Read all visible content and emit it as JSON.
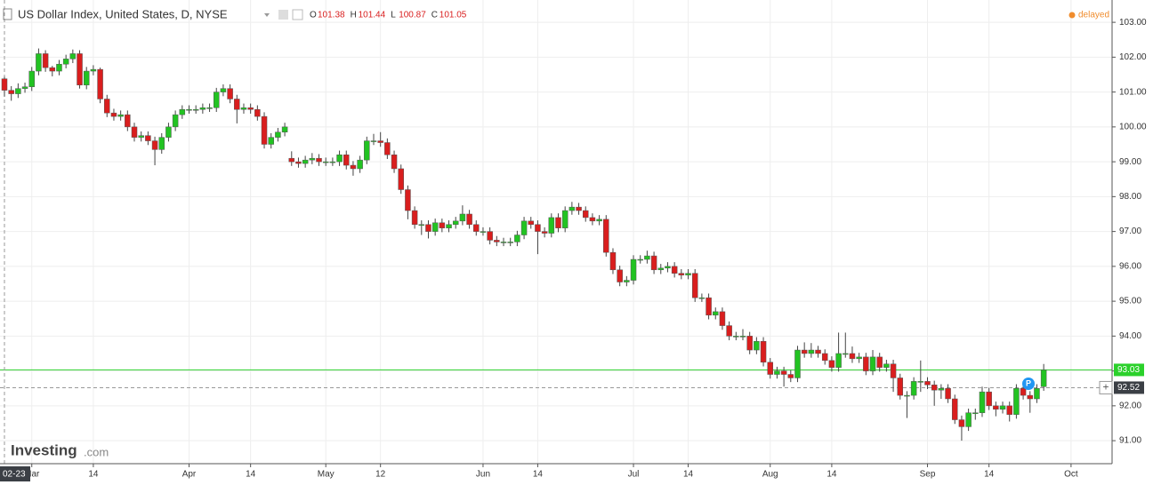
{
  "chart_data": {
    "type": "candlestick",
    "title": "US Dollar Index, United States, D, NYSE",
    "ohlc_letters": [
      "O",
      "H",
      "L",
      "C"
    ],
    "status": "delayed",
    "brand": "Investing",
    "brand_suffix": ".com",
    "up_color": "#22c322",
    "down_color": "#d91e1e",
    "last_price": 93.03,
    "last_price_color": "#2bd12b",
    "crosshair_price": 92.52,
    "crosshair_date": "02-23",
    "ylim": [
      90.34,
      103.64
    ],
    "yticks": [
      {
        "value": 91,
        "label": "91.00"
      },
      {
        "value": 92,
        "label": "92.00"
      },
      {
        "value": 93,
        "label": "93.00"
      },
      {
        "value": 94,
        "label": "94.00"
      },
      {
        "value": 95,
        "label": "95.00"
      },
      {
        "value": 96,
        "label": "96.00"
      },
      {
        "value": 97,
        "label": "97.00"
      },
      {
        "value": 98,
        "label": "98.00"
      },
      {
        "value": 99,
        "label": "99.00"
      },
      {
        "value": 100,
        "label": "100.00"
      },
      {
        "value": 101,
        "label": "101.00"
      },
      {
        "value": 102,
        "label": "102.00"
      },
      {
        "value": 103,
        "label": "103.00"
      }
    ],
    "xlim": [
      -0.65,
      162
    ],
    "xticks": [
      {
        "value": 4,
        "label": "Mar"
      },
      {
        "value": 13,
        "label": "14"
      },
      {
        "value": 27,
        "label": "Apr"
      },
      {
        "value": 36,
        "label": "14"
      },
      {
        "value": 47,
        "label": "May"
      },
      {
        "value": 55,
        "label": "12"
      },
      {
        "value": 70,
        "label": "Jun"
      },
      {
        "value": 78,
        "label": "14"
      },
      {
        "value": 92,
        "label": "Jul"
      },
      {
        "value": 100,
        "label": "14"
      },
      {
        "value": 112,
        "label": "Aug"
      },
      {
        "value": 121,
        "label": "14"
      },
      {
        "value": 135,
        "label": "Sep"
      },
      {
        "value": 144,
        "label": "14"
      },
      {
        "value": 156,
        "label": "Oct"
      }
    ],
    "grid": true,
    "ohlc": [
      [
        101.38,
        101.44,
        100.87,
        101.05
      ],
      [
        101.05,
        101.17,
        100.75,
        100.95
      ],
      [
        100.95,
        101.25,
        100.83,
        101.1
      ],
      [
        101.1,
        101.27,
        100.98,
        101.15
      ],
      [
        101.15,
        101.72,
        101.03,
        101.6
      ],
      [
        101.6,
        102.25,
        101.48,
        102.1
      ],
      [
        102.1,
        102.2,
        101.58,
        101.7
      ],
      [
        101.7,
        101.75,
        101.45,
        101.6
      ],
      [
        101.6,
        101.92,
        101.48,
        101.8
      ],
      [
        101.8,
        102.07,
        101.68,
        101.95
      ],
      [
        101.95,
        102.22,
        101.83,
        102.1
      ],
      [
        102.1,
        102.2,
        101.1,
        101.2
      ],
      [
        101.2,
        101.72,
        101.08,
        101.6
      ],
      [
        101.6,
        101.77,
        101.48,
        101.65
      ],
      [
        101.65,
        101.7,
        100.68,
        100.8
      ],
      [
        100.8,
        100.92,
        100.28,
        100.4
      ],
      [
        100.4,
        100.52,
        100.18,
        100.3
      ],
      [
        100.3,
        100.47,
        100.18,
        100.35
      ],
      [
        100.35,
        100.47,
        99.88,
        100.0
      ],
      [
        100.0,
        100.12,
        99.58,
        99.7
      ],
      [
        99.7,
        99.87,
        99.58,
        99.75
      ],
      [
        99.75,
        99.87,
        99.48,
        99.6
      ],
      [
        99.6,
        99.72,
        98.9,
        99.35
      ],
      [
        99.35,
        99.82,
        99.23,
        99.7
      ],
      [
        99.7,
        100.12,
        99.58,
        100.0
      ],
      [
        100.0,
        100.47,
        99.88,
        100.35
      ],
      [
        100.35,
        100.62,
        100.23,
        100.5
      ],
      [
        100.5,
        100.62,
        100.38,
        100.5
      ],
      [
        100.5,
        100.62,
        100.38,
        100.5
      ],
      [
        100.5,
        100.67,
        100.38,
        100.55
      ],
      [
        100.55,
        100.67,
        100.43,
        100.55
      ],
      [
        100.55,
        101.12,
        100.43,
        101.0
      ],
      [
        101.0,
        101.22,
        100.88,
        101.1
      ],
      [
        101.1,
        101.22,
        100.68,
        100.8
      ],
      [
        100.8,
        100.92,
        100.1,
        100.5
      ],
      [
        100.5,
        100.67,
        100.38,
        100.55
      ],
      [
        100.55,
        100.67,
        100.38,
        100.5
      ],
      [
        100.5,
        100.62,
        100.18,
        100.3
      ],
      [
        100.3,
        100.42,
        99.38,
        99.5
      ],
      [
        99.5,
        99.82,
        99.38,
        99.7
      ],
      [
        99.7,
        99.97,
        99.58,
        99.85
      ],
      [
        99.85,
        100.12,
        99.73,
        100.0
      ],
      [
        99.1,
        99.3,
        98.88,
        99.0
      ],
      [
        99.0,
        99.12,
        98.83,
        98.95
      ],
      [
        98.95,
        99.17,
        98.83,
        99.05
      ],
      [
        99.05,
        99.25,
        98.93,
        99.1
      ],
      [
        99.1,
        99.22,
        98.88,
        99.0
      ],
      [
        99.0,
        99.12,
        98.88,
        99.0
      ],
      [
        99.0,
        99.12,
        98.88,
        99.0
      ],
      [
        99.0,
        99.32,
        98.88,
        99.2
      ],
      [
        99.2,
        99.32,
        98.78,
        98.9
      ],
      [
        98.9,
        99.02,
        98.6,
        98.8
      ],
      [
        98.8,
        99.17,
        98.68,
        99.05
      ],
      [
        99.05,
        99.72,
        98.93,
        99.6
      ],
      [
        99.6,
        99.8,
        99.48,
        99.6
      ],
      [
        99.6,
        99.85,
        99.43,
        99.55
      ],
      [
        99.55,
        99.67,
        99.08,
        99.2
      ],
      [
        99.2,
        99.32,
        98.68,
        98.8
      ],
      [
        98.8,
        98.92,
        98.08,
        98.2
      ],
      [
        98.2,
        98.32,
        97.35,
        97.6
      ],
      [
        97.6,
        97.72,
        97.08,
        97.2
      ],
      [
        97.2,
        97.32,
        96.9,
        97.2
      ],
      [
        97.2,
        97.32,
        96.8,
        97.0
      ],
      [
        97.0,
        97.37,
        96.88,
        97.25
      ],
      [
        97.25,
        97.37,
        96.98,
        97.1
      ],
      [
        97.1,
        97.32,
        96.98,
        97.2
      ],
      [
        97.2,
        97.42,
        97.08,
        97.3
      ],
      [
        97.3,
        97.75,
        97.18,
        97.5
      ],
      [
        97.5,
        97.62,
        97.08,
        97.2
      ],
      [
        97.2,
        97.32,
        96.88,
        97.0
      ],
      [
        97.0,
        97.12,
        96.88,
        97.0
      ],
      [
        97.0,
        97.12,
        96.63,
        96.75
      ],
      [
        96.75,
        96.87,
        96.58,
        96.7
      ],
      [
        96.7,
        96.82,
        96.58,
        96.7
      ],
      [
        96.7,
        96.82,
        96.58,
        96.7
      ],
      [
        96.7,
        97.02,
        96.58,
        96.9
      ],
      [
        96.9,
        97.42,
        96.78,
        97.3
      ],
      [
        97.3,
        97.42,
        97.08,
        97.2
      ],
      [
        97.2,
        97.32,
        96.35,
        97.0
      ],
      [
        97.0,
        97.12,
        96.83,
        96.95
      ],
      [
        96.95,
        97.52,
        96.83,
        97.4
      ],
      [
        97.4,
        97.52,
        96.98,
        97.1
      ],
      [
        97.1,
        97.72,
        96.98,
        97.6
      ],
      [
        97.6,
        97.85,
        97.48,
        97.7
      ],
      [
        97.7,
        97.82,
        97.48,
        97.6
      ],
      [
        97.6,
        97.72,
        97.28,
        97.4
      ],
      [
        97.4,
        97.52,
        97.18,
        97.3
      ],
      [
        97.3,
        97.47,
        97.18,
        97.35
      ],
      [
        97.35,
        97.47,
        96.28,
        96.4
      ],
      [
        96.4,
        96.52,
        95.78,
        95.9
      ],
      [
        95.9,
        96.02,
        95.43,
        95.55
      ],
      [
        95.55,
        95.72,
        95.43,
        95.6
      ],
      [
        95.6,
        96.32,
        95.48,
        96.2
      ],
      [
        96.2,
        96.32,
        96.08,
        96.2
      ],
      [
        96.2,
        96.45,
        96.08,
        96.3
      ],
      [
        96.3,
        96.42,
        95.78,
        95.9
      ],
      [
        95.9,
        96.07,
        95.78,
        95.95
      ],
      [
        95.95,
        96.12,
        95.83,
        96.0
      ],
      [
        96.0,
        96.12,
        95.68,
        95.8
      ],
      [
        95.8,
        95.92,
        95.63,
        95.75
      ],
      [
        95.75,
        95.92,
        95.63,
        95.8
      ],
      [
        95.8,
        95.92,
        94.98,
        95.1
      ],
      [
        95.1,
        95.22,
        94.98,
        95.1
      ],
      [
        95.1,
        95.22,
        94.48,
        94.6
      ],
      [
        94.6,
        94.82,
        94.48,
        94.7
      ],
      [
        94.7,
        94.82,
        94.18,
        94.3
      ],
      [
        94.3,
        94.42,
        93.88,
        94.0
      ],
      [
        94.0,
        94.12,
        93.88,
        94.0
      ],
      [
        94.0,
        94.2,
        93.88,
        94.0
      ],
      [
        94.0,
        94.12,
        93.48,
        93.6
      ],
      [
        93.6,
        93.97,
        93.48,
        93.85
      ],
      [
        93.85,
        93.97,
        93.13,
        93.25
      ],
      [
        93.25,
        93.37,
        92.78,
        92.9
      ],
      [
        92.9,
        93.12,
        92.78,
        93.0
      ],
      [
        93.0,
        93.12,
        92.55,
        92.9
      ],
      [
        92.9,
        93.02,
        92.68,
        92.8
      ],
      [
        92.8,
        93.72,
        92.68,
        93.6
      ],
      [
        93.6,
        93.82,
        93.38,
        93.5
      ],
      [
        93.5,
        93.8,
        93.38,
        93.6
      ],
      [
        93.6,
        93.72,
        93.38,
        93.5
      ],
      [
        93.5,
        93.62,
        93.18,
        93.3
      ],
      [
        93.3,
        93.42,
        92.98,
        93.1
      ],
      [
        93.1,
        94.1,
        92.98,
        93.5
      ],
      [
        93.5,
        94.1,
        93.38,
        93.5
      ],
      [
        93.5,
        93.7,
        93.23,
        93.35
      ],
      [
        93.35,
        93.52,
        93.23,
        93.4
      ],
      [
        93.4,
        93.52,
        92.88,
        93.0
      ],
      [
        93.0,
        93.6,
        92.88,
        93.4
      ],
      [
        93.4,
        93.52,
        92.98,
        93.1
      ],
      [
        93.1,
        93.32,
        92.98,
        93.2
      ],
      [
        93.2,
        93.32,
        92.4,
        92.8
      ],
      [
        92.8,
        92.92,
        92.18,
        92.3
      ],
      [
        92.3,
        92.42,
        91.65,
        92.3
      ],
      [
        92.3,
        92.82,
        92.18,
        92.7
      ],
      [
        92.7,
        93.3,
        92.4,
        92.7
      ],
      [
        92.7,
        92.82,
        92.48,
        92.6
      ],
      [
        92.6,
        92.72,
        92.0,
        92.45
      ],
      [
        92.45,
        92.62,
        92.2,
        92.5
      ],
      [
        92.5,
        92.62,
        92.08,
        92.2
      ],
      [
        92.2,
        92.32,
        91.48,
        91.6
      ],
      [
        91.6,
        91.72,
        91.0,
        91.4
      ],
      [
        91.4,
        91.92,
        91.28,
        91.8
      ],
      [
        91.8,
        91.92,
        91.6,
        91.8
      ],
      [
        91.8,
        92.55,
        91.68,
        92.4
      ],
      [
        92.4,
        92.52,
        91.88,
        92.0
      ],
      [
        92.0,
        92.12,
        91.7,
        91.9
      ],
      [
        91.9,
        92.12,
        91.78,
        92.0
      ],
      [
        92.0,
        92.12,
        91.55,
        91.75
      ],
      [
        91.75,
        92.62,
        91.63,
        92.5
      ],
      [
        92.5,
        92.62,
        92.18,
        92.3
      ],
      [
        92.3,
        92.42,
        91.8,
        92.2
      ],
      [
        92.2,
        92.62,
        92.08,
        92.5
      ],
      [
        92.55,
        93.2,
        92.43,
        93.03
      ]
    ]
  }
}
